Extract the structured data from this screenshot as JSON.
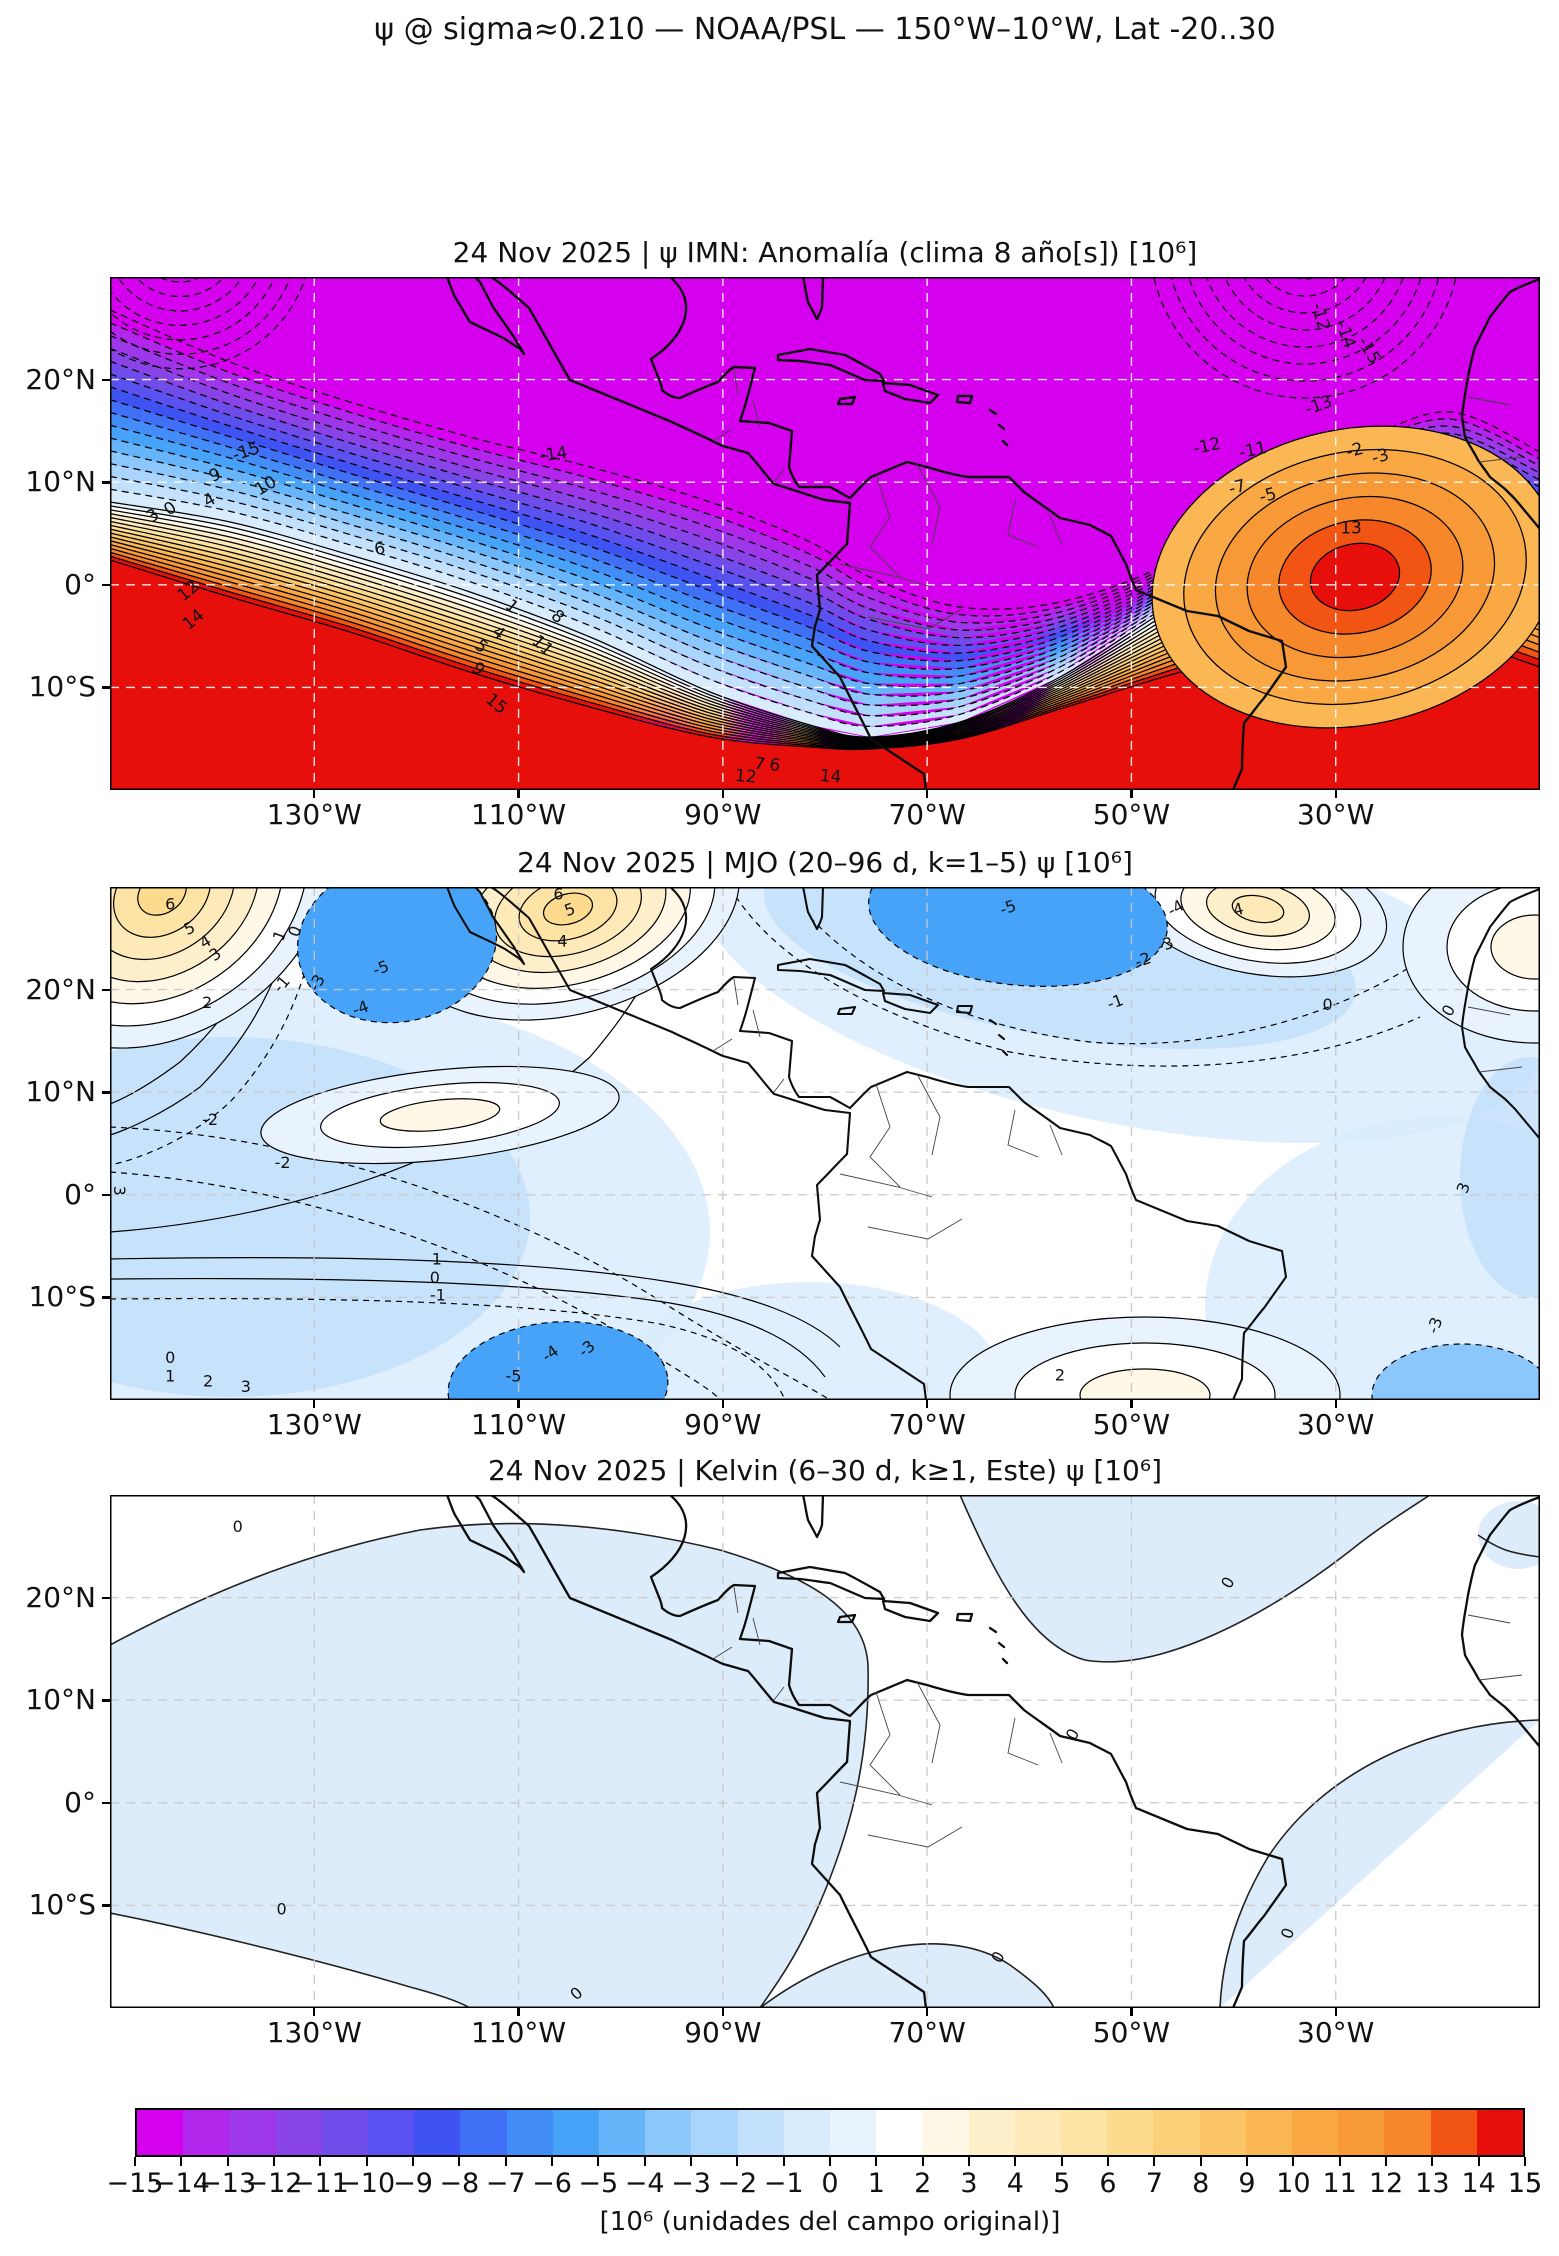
{
  "figure": {
    "title": "ψ @ sigma≈0.210 — NOAA/PSL — 150°W–10°W, Lat -20..30",
    "background": "#ffffff"
  },
  "axes": {
    "x_tick_labels": [
      "130°W",
      "110°W",
      "90°W",
      "70°W",
      "50°W",
      "30°W"
    ],
    "x_tick_lons": [
      -130,
      -110,
      -90,
      -70,
      -50,
      -30
    ],
    "y_tick_labels": [
      "20°N",
      "10°N",
      "0°",
      "10°S"
    ],
    "y_tick_lats": [
      20,
      10,
      0,
      -10
    ]
  },
  "panels": [
    {
      "id": "anomaly",
      "title": "24 Nov 2025 | ψ IMN: Anomalía (clima 8 año[s]) [10⁶]"
    },
    {
      "id": "mjo",
      "title": "24 Nov 2025 | MJO (20–96 d, k=1–5) ψ [10⁶]"
    },
    {
      "id": "kelvin",
      "title": "24 Nov 2025 | Kelvin (6–30 d, k≥1, Este) ψ [10⁶]"
    }
  ],
  "colorbar": {
    "label": "[10⁶ (unidades del campo original)]",
    "tick_labels": [
      "−15",
      "−14",
      "−13",
      "−12",
      "−11",
      "−10",
      "−9",
      "−8",
      "−7",
      "−6",
      "−5",
      "−4",
      "−3",
      "−2",
      "−1",
      "0",
      "1",
      "2",
      "3",
      "4",
      "5",
      "6",
      "7",
      "8",
      "9",
      "10",
      "11",
      "12",
      "13",
      "14",
      "15"
    ],
    "colors": [
      "#d400ee",
      "#b226ec",
      "#9d37e9",
      "#8844e7",
      "#6f4deb",
      "#5a52f0",
      "#3f53f3",
      "#3f70f6",
      "#428df7",
      "#47a3f8",
      "#66b4f9",
      "#8cc7fb",
      "#a9d4fb",
      "#c3e1fc",
      "#d9ecfd",
      "#e8f3fd",
      "#ffffff",
      "#fff8e7",
      "#feefcb",
      "#fdeab8",
      "#fde3a4",
      "#fcda8e",
      "#fcd078",
      "#fbc464",
      "#fab753",
      "#f9a843",
      "#f89937",
      "#f7872b",
      "#f25513",
      "#e60f0c"
    ]
  },
  "chart_data": {
    "type": "heatmap",
    "subtype": "filled-contour-maps",
    "lon_range": [
      -150,
      -10
    ],
    "lat_range": [
      -20,
      30
    ],
    "contour_interval": 1,
    "value_scale": "10^6 field units",
    "colorbar_range": [
      -15,
      15
    ],
    "panels": [
      {
        "name": "anomaly",
        "title": "24 Nov 2025 | ψ IMN: Anomalía (clima 8 año[s]) [10⁶]",
        "description": "Strong negative (magenta, < -15) anomaly covering the north (Gulf of Mexico / Caribbean, dipping south over NW South America); dense dashed negative contour band; strong positive (red, > +15) anomaly across the south, with closed +13 maximum near 28°W, 5°N–5°S.",
        "negative_contours_dashed": true,
        "labels": [
          [
            "-15",
            -136.5,
            12.5,
            -18
          ],
          [
            "10",
            -134.5,
            9.2,
            -30
          ],
          [
            "9",
            -139.5,
            10.2,
            -25
          ],
          [
            "4",
            -140.0,
            7.8,
            -30
          ],
          [
            "3",
            -145.5,
            6.3,
            -35
          ],
          [
            "0",
            -143.8,
            7.0,
            -35
          ],
          [
            "6",
            -123.5,
            3.0,
            -10
          ],
          [
            "-14",
            -106.5,
            12.2,
            -8
          ],
          [
            "12",
            -142.0,
            -1.0,
            -40
          ],
          [
            "14",
            -141.5,
            -3.8,
            -40
          ],
          [
            "1",
            -111.0,
            -2.5,
            40
          ],
          [
            "4",
            -112.3,
            -5.1,
            40
          ],
          [
            "5",
            -114.0,
            -6.4,
            40
          ],
          [
            "9",
            -114.3,
            -8.6,
            42
          ],
          [
            "8",
            -106.5,
            -3.5,
            40
          ],
          [
            "11",
            -108.0,
            -6.3,
            42
          ],
          [
            "15",
            -112.5,
            -12.0,
            40
          ],
          [
            "-12",
            -42.5,
            13.0,
            -12
          ],
          [
            "-11",
            -38.0,
            12.6,
            -12
          ],
          [
            "-13",
            -31.5,
            17.0,
            -20
          ],
          [
            "-7",
            -39.5,
            9.0,
            -15
          ],
          [
            "-5",
            -36.5,
            8.2,
            -15
          ],
          [
            "-2",
            -28.0,
            12.6,
            -15
          ],
          [
            "-3",
            -25.5,
            12.0,
            -15
          ],
          [
            "13",
            -28.5,
            5.0,
            0
          ],
          [
            "7",
            -86.5,
            -18.0,
            10
          ],
          [
            "6",
            -85.0,
            -18.1,
            10
          ],
          [
            "12",
            -87.8,
            -19.2,
            5
          ],
          [
            "14",
            -79.5,
            -19.2,
            5
          ],
          [
            "-12",
            -32.0,
            26.0,
            75
          ],
          [
            "-14",
            -29.5,
            24.2,
            70
          ],
          [
            "-15",
            -27.2,
            22.6,
            60
          ]
        ]
      },
      {
        "name": "mjo",
        "title": "24 Nov 2025 | MJO (20–96 d, k=1–5) ψ [10⁶]",
        "description": "Weak alternating cells: +6 maxima NW corner and over Mexico; −5 minima near 122°W 22°N, near 62°W 27°N and near 110°W 18°S; broad −1/−2 pale blue over SE Pacific and tropical Atlantic; +2 cells near 118°W 0° and over Brazil/SW Atlantic.",
        "negative_contours_dashed": true,
        "labels": [
          [
            "6",
            -144.1,
            27.8,
            0
          ],
          [
            "5",
            -142.0,
            25.5,
            -25
          ],
          [
            "4",
            -140.4,
            24.2,
            -30
          ],
          [
            "3",
            -139.4,
            23.0,
            -35
          ],
          [
            "2",
            -140.5,
            18.2,
            0
          ],
          [
            "1",
            -132.9,
            25.1,
            -70
          ],
          [
            "0",
            -131.4,
            25.5,
            -70
          ],
          [
            "-1",
            -132.8,
            20.2,
            -50
          ],
          [
            "-3",
            -129.3,
            20.4,
            -60
          ],
          [
            "-5",
            -123.3,
            21.6,
            -20
          ],
          [
            "-4",
            -125.3,
            17.7,
            -20
          ],
          [
            "-2",
            -140.2,
            6.8,
            0
          ],
          [
            "-2",
            -133.1,
            2.6,
            0
          ],
          [
            "1",
            -118.0,
            -6.8,
            0
          ],
          [
            "0",
            -118.2,
            -8.6,
            0
          ],
          [
            "-1",
            -117.9,
            -10.3,
            0
          ],
          [
            "0",
            -144.1,
            -16.4,
            0
          ],
          [
            "1",
            -144.1,
            -18.2,
            0
          ],
          [
            "2",
            -140.4,
            -18.7,
            0
          ],
          [
            "3",
            -136.7,
            -19.2,
            0
          ],
          [
            "-5",
            -110.5,
            -18.2,
            0
          ],
          [
            "-4",
            -106.6,
            -15.9,
            -35
          ],
          [
            "-3",
            -103.0,
            -15.4,
            -40
          ],
          [
            "6",
            -106.1,
            28.8,
            0
          ],
          [
            "5",
            -104.8,
            27.3,
            -20
          ],
          [
            "4",
            -105.7,
            24.2,
            0
          ],
          [
            "-5",
            -61.9,
            27.5,
            -20
          ],
          [
            "-4",
            -45.4,
            27.5,
            -30
          ],
          [
            "-3",
            -46.5,
            23.9,
            -20
          ],
          [
            "-2",
            -48.7,
            22.4,
            -20
          ],
          [
            "-1",
            -51.4,
            18.3,
            -20
          ],
          [
            "4",
            -39.4,
            27.3,
            -15
          ],
          [
            "0",
            -30.8,
            18.0,
            0
          ],
          [
            "0",
            -18.5,
            17.7,
            -60
          ],
          [
            "-3",
            -19.8,
            -12.9,
            -70
          ],
          [
            "2",
            -57.0,
            -18.1,
            0
          ],
          [
            "3",
            -149.6,
            0.4,
            90
          ],
          [
            "3",
            -17.0,
            0.5,
            -70
          ]
        ]
      },
      {
        "name": "kelvin",
        "title": "24 Nov 2025 | Kelvin (6–30 d, k≥1, Este) ψ [10⁶]",
        "description": "Very weak field: only the 0 contour appears, separating faint negative (pale blue, ~ -0.5) pools over the SE/central Pacific, the central tropical Atlantic and near West Africa from neutral (white) elsewhere.",
        "labels": [
          [
            "0",
            -137.5,
            26.4,
            0
          ],
          [
            "0",
            -133.2,
            -10.9,
            0
          ],
          [
            "0",
            -40.1,
            21.2,
            -60
          ],
          [
            "0",
            -55.3,
            6.4,
            -60
          ],
          [
            "0",
            -34.2,
            -12.9,
            -70
          ],
          [
            "0",
            -62.6,
            -15.3,
            -60
          ],
          [
            "0",
            -104.0,
            -19.0,
            -40
          ]
        ]
      }
    ]
  }
}
